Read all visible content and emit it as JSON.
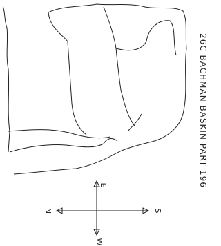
{
  "title": "26C BACHMAN BASKIN PART 196",
  "compass": {
    "north": "N",
    "east": "E",
    "south": "S",
    "west": "W"
  }
}
